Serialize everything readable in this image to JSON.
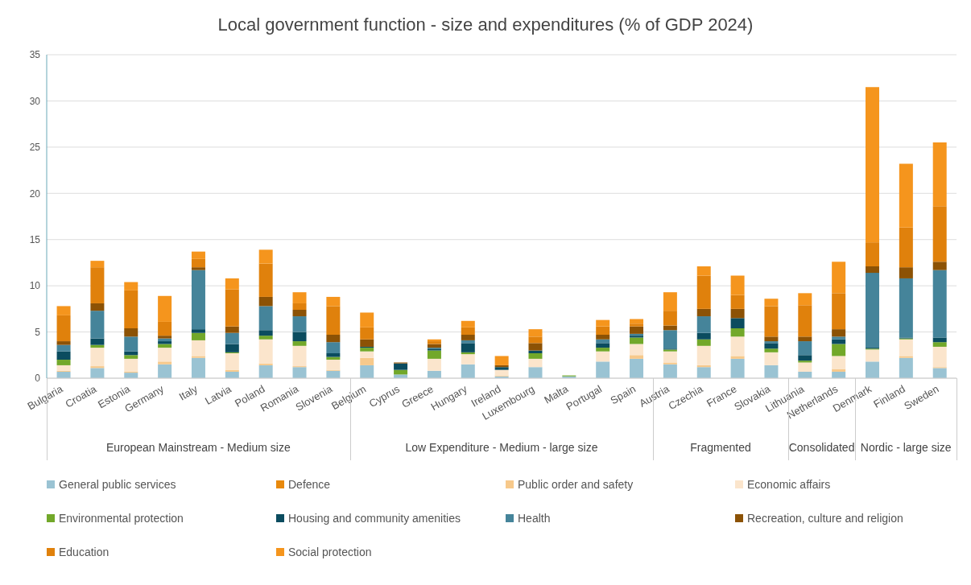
{
  "chart_data": {
    "type": "bar",
    "stacked": true,
    "title": "Local government function - size and expenditures (% of GDP 2024)",
    "categories": [
      "Bulgaria",
      "Croatia",
      "Estonia",
      "Germany",
      "Italy",
      "Latvia",
      "Poland",
      "Romania",
      "Slovenia",
      "Belgium",
      "Cyprus",
      "Greece",
      "Hungary",
      "Ireland",
      "Luxembourg",
      "Malta",
      "Portugal",
      "Spain",
      "Austria",
      "Czechia",
      "France",
      "Slovakia",
      "Lithuania",
      "Netherlands",
      "Denmark",
      "Finland",
      "Sweden"
    ],
    "series": [
      {
        "name": "General public services",
        "color": "#9ac3d3",
        "values": [
          0.7,
          1.1,
          0.6,
          1.5,
          2.2,
          0.7,
          1.4,
          1.2,
          0.8,
          1.4,
          0.4,
          0.8,
          1.5,
          0.2,
          1.2,
          0.2,
          1.8,
          2.1,
          1.5,
          1.2,
          2.1,
          1.4,
          0.7,
          0.7,
          1.8,
          2.2,
          1.1
        ]
      },
      {
        "name": "Defence",
        "color": "#e8890c",
        "values": [
          0,
          0,
          0,
          0,
          0,
          0,
          0,
          0,
          0,
          0,
          0,
          0,
          0,
          0,
          0,
          0,
          0,
          0,
          0,
          0,
          0,
          0,
          0,
          0,
          0,
          0,
          0
        ]
      },
      {
        "name": "Public order and safety",
        "color": "#f7c98b",
        "values": [
          0.1,
          0.2,
          0.1,
          0.3,
          0.2,
          0.2,
          0.2,
          0.1,
          0.1,
          0.8,
          0,
          0,
          0,
          0.1,
          0,
          0,
          0,
          0.4,
          0.2,
          0.2,
          0.3,
          0,
          0,
          0.3,
          0,
          0.2,
          0.1
        ]
      },
      {
        "name": "Economic affairs",
        "color": "#fbe5cc",
        "values": [
          0.6,
          2.0,
          1.4,
          1.5,
          1.7,
          1.8,
          2.6,
          2.2,
          1.1,
          0.7,
          0,
          1.3,
          1.1,
          0.6,
          0.9,
          0,
          1.1,
          1.2,
          1.2,
          2.1,
          2.1,
          1.4,
          1.0,
          1.4,
          1.3,
          1.8,
          2.2
        ]
      },
      {
        "name": "Environmental protection",
        "color": "#72a82a",
        "values": [
          0.6,
          0.3,
          0.4,
          0.4,
          0.8,
          0.1,
          0.4,
          0.5,
          0.3,
          0.4,
          0.5,
          0.9,
          0.2,
          0,
          0.6,
          0.1,
          0.4,
          0.7,
          0.2,
          0.7,
          0.9,
          0.4,
          0.2,
          1.3,
          0.1,
          0.1,
          0.5
        ]
      },
      {
        "name": "Housing and community amenities",
        "color": "#0b4c5f",
        "values": [
          0.9,
          0.7,
          0.4,
          0.3,
          0.4,
          0.9,
          0.6,
          1.0,
          0.4,
          0.1,
          0.7,
          0.2,
          1.0,
          0.3,
          0.3,
          0,
          0.5,
          0.2,
          0.1,
          0.7,
          1.1,
          0.6,
          0.6,
          0.5,
          0.1,
          0.1,
          0.5
        ]
      },
      {
        "name": "Health",
        "color": "#45849a",
        "values": [
          0.7,
          3.0,
          1.6,
          0.3,
          6.4,
          1.2,
          2.6,
          1.7,
          1.2,
          0,
          0,
          0.1,
          0.3,
          0,
          0,
          0,
          0.4,
          0.2,
          2.0,
          1.8,
          0,
          0.2,
          1.5,
          0.3,
          8.1,
          6.4,
          7.3
        ]
      },
      {
        "name": "Recreation, culture and religion",
        "color": "#8c5205",
        "values": [
          0.4,
          0.8,
          0.9,
          0.3,
          0.3,
          0.7,
          1.0,
          0.7,
          0.8,
          0.8,
          0.1,
          0.4,
          0.6,
          0.2,
          0.8,
          0,
          0.5,
          0.8,
          0.5,
          0.8,
          1.0,
          0.5,
          0.5,
          0.8,
          0.7,
          1.2,
          0.9
        ]
      },
      {
        "name": "Education",
        "color": "#e0810c",
        "values": [
          2.8,
          3.9,
          4.1,
          1.5,
          0.9,
          4.0,
          3.6,
          0.7,
          3.1,
          1.3,
          0,
          0.3,
          0.8,
          0,
          0.7,
          0,
          0.9,
          0.3,
          1.6,
          3.6,
          1.5,
          3.3,
          3.4,
          3.9,
          2.6,
          4.3,
          6.0
        ]
      },
      {
        "name": "Social protection",
        "color": "#f5951d",
        "values": [
          1.0,
          0.7,
          0.9,
          2.8,
          0.8,
          1.2,
          1.5,
          1.2,
          1.0,
          1.6,
          0,
          0.2,
          0.7,
          1.0,
          0.8,
          0,
          0.7,
          0.5,
          2.0,
          1.0,
          2.1,
          0.8,
          1.3,
          3.4,
          16.8,
          6.9,
          6.9
        ]
      }
    ],
    "ylim": [
      0,
      35
    ],
    "yticks": [
      0,
      5,
      10,
      15,
      20,
      25,
      30,
      35
    ],
    "grid": "y",
    "legend": "bottom",
    "annotations": [
      "European Mainstream - Medium size",
      "Low Expenditure - Medium - large size",
      "Fragmented",
      "Consolidated",
      "Nordic - large size"
    ]
  }
}
